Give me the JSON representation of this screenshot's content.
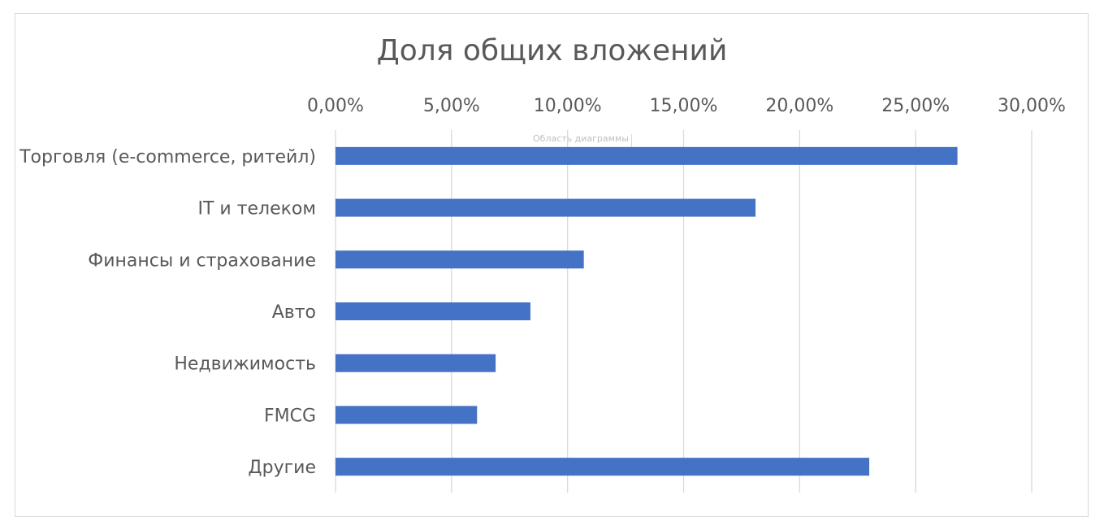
{
  "chart_data": {
    "type": "bar",
    "orientation": "horizontal",
    "title": "Доля общих вложений",
    "plot_area_hint": "Область диаграммы",
    "categories": [
      "Торговля (e-commerce, ритейл)",
      "IT и телеком",
      "Финансы и страхование",
      "Авто",
      "Недвижимость",
      "FMCG",
      "Другие"
    ],
    "values": [
      26.8,
      18.1,
      10.7,
      8.4,
      6.9,
      6.1,
      23.0
    ],
    "xlim": [
      0,
      30
    ],
    "xticks": [
      0,
      5,
      10,
      15,
      20,
      25,
      30
    ],
    "xtick_labels": [
      "0,00%",
      "5,00%",
      "10,00%",
      "15,00%",
      "20,00%",
      "25,00%",
      "30,00%"
    ],
    "x_axis_position": "top",
    "grid": true,
    "legend": "none",
    "bar_color": "#4472C4",
    "grid_color": "#d9d9d9"
  }
}
